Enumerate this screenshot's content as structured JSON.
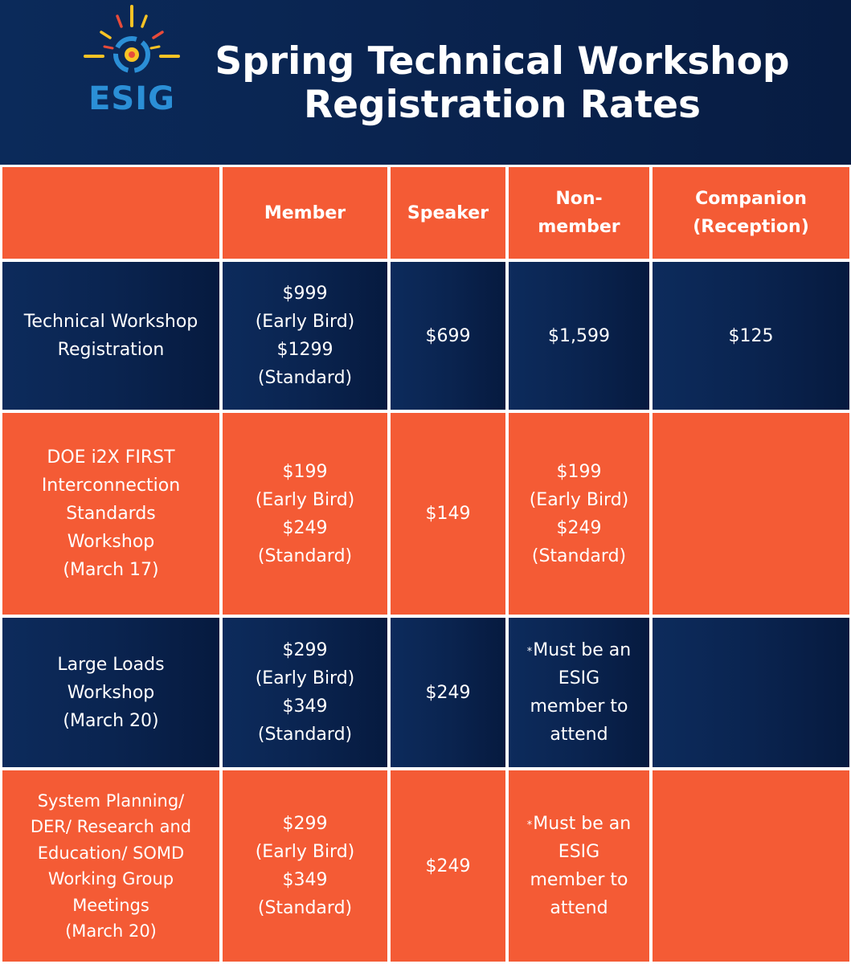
{
  "logo": {
    "text": "ESIG"
  },
  "title": {
    "line1": "Spring Technical Workshop",
    "line2": "Registration Rates"
  },
  "table": {
    "headers": [
      "",
      "Member",
      "Speaker",
      "Non-\nmember",
      "Companion\n(Reception)"
    ],
    "rows": [
      {
        "label": "Technical Workshop\nRegistration",
        "member": "$999\n(Early Bird)\n$1299\n(Standard)",
        "speaker": "$699",
        "nonmember": "$1,599",
        "companion": "$125"
      },
      {
        "label": "DOE i2X FIRST\nInterconnection\nStandards\nWorkshop\n(March 17)",
        "member": "$199\n(Early Bird)\n$249\n(Standard)",
        "speaker": "$149",
        "nonmember": "$199\n(Early Bird)\n$249\n(Standard)",
        "companion": ""
      },
      {
        "label": "Large Loads\nWorkshop\n(March 20)",
        "member": "$299\n(Early Bird)\n$349\n(Standard)",
        "speaker": "$249",
        "nonmember_asterisk": "*",
        "nonmember": "Must be an\nESIG\nmember to\nattend",
        "companion": ""
      },
      {
        "label": "System Planning/\nDER/ Research and\nEducation/ SOMD\nWorking Group\nMeetings\n(March 20)",
        "member": "$299\n(Early Bird)\n$349\n(Standard)",
        "speaker": "$249",
        "nonmember_asterisk": "*",
        "nonmember": "Must be an\nESIG\nmember to\nattend",
        "companion": ""
      }
    ]
  },
  "colors": {
    "navy": "#0b2450",
    "orange": "#f45b35",
    "logo_blue": "#2b8fd6",
    "logo_yellow": "#f7c325",
    "logo_red": "#e84b3a"
  }
}
